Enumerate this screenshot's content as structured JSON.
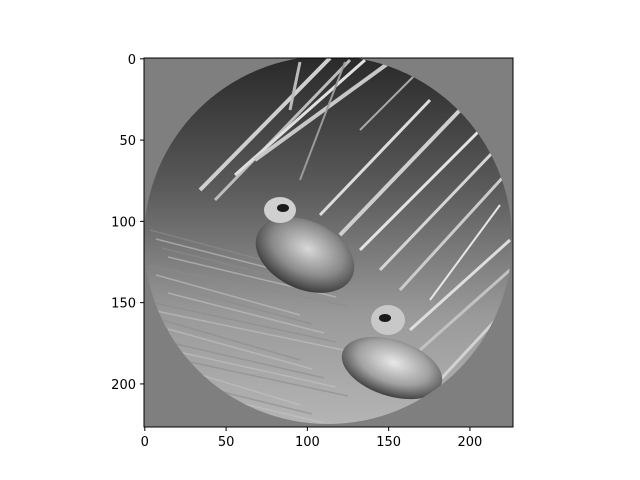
{
  "chart_data": {
    "type": "image",
    "title": "",
    "xlabel": "",
    "ylabel": "",
    "image_size": [
      227,
      227
    ],
    "xlim": [
      -0.5,
      226.5
    ],
    "ylim": [
      226.5,
      -0.5
    ],
    "x_ticks": [
      0,
      50,
      100,
      150,
      200
    ],
    "y_ticks": [
      0,
      50,
      100,
      150,
      200
    ],
    "x_tick_labels": [
      "0",
      "50",
      "100",
      "150",
      "200"
    ],
    "y_tick_labels": [
      "0",
      "50",
      "100",
      "150",
      "200"
    ],
    "image_description": "grayscale photo inside a circular mask showing two ducks among reeds",
    "mask_shape": "circle",
    "background_gray": "#7f7f7f",
    "grid": false,
    "legend": "none"
  }
}
